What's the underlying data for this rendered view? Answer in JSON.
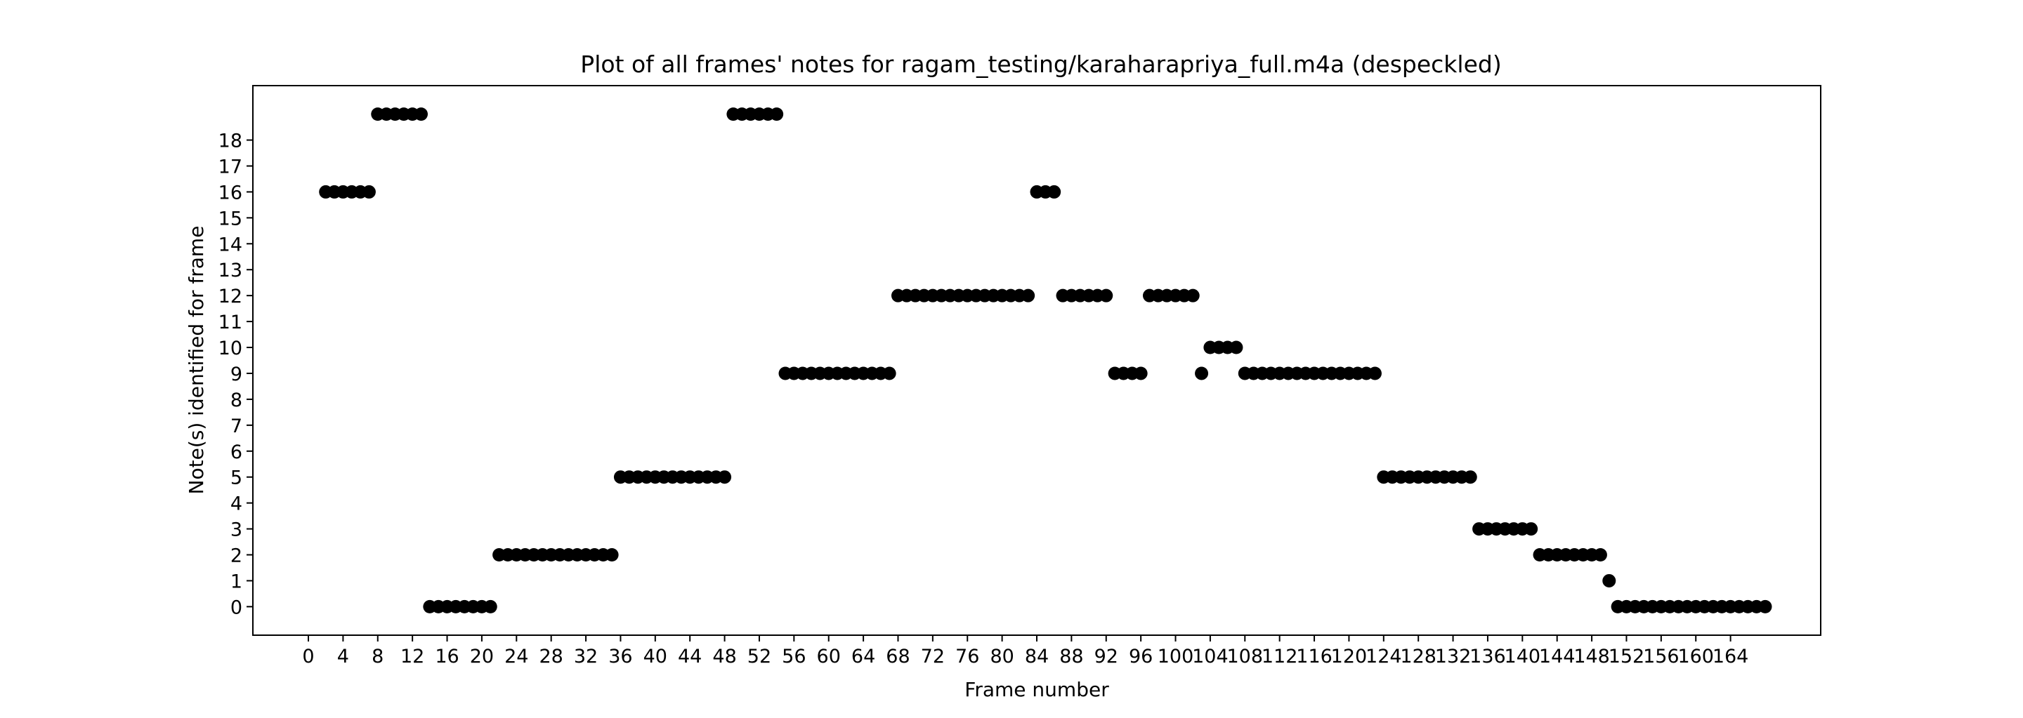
{
  "chart_data": {
    "type": "scatter",
    "title": "Plot of all frames' notes for ragam_testing/karaharapriya_full.m4a (despeckled)",
    "xlabel": "Frame number",
    "ylabel": "Note(s) identified for frame",
    "xlim": [
      -6.4,
      174.4
    ],
    "ylim": [
      -1.1,
      20.1
    ],
    "xticks": [
      0,
      4,
      8,
      12,
      16,
      20,
      24,
      28,
      32,
      36,
      40,
      44,
      48,
      52,
      56,
      60,
      64,
      68,
      72,
      76,
      80,
      84,
      88,
      92,
      96,
      100,
      104,
      108,
      112,
      116,
      120,
      124,
      128,
      132,
      136,
      140,
      144,
      148,
      152,
      156,
      160,
      164
    ],
    "yticks": [
      0,
      1,
      2,
      3,
      4,
      5,
      6,
      7,
      8,
      9,
      10,
      11,
      12,
      13,
      14,
      15,
      16,
      17,
      18
    ],
    "grid": false,
    "marker_color": "#000000",
    "points": [
      [
        2,
        16
      ],
      [
        3,
        16
      ],
      [
        4,
        16
      ],
      [
        5,
        16
      ],
      [
        6,
        16
      ],
      [
        7,
        16
      ],
      [
        8,
        19
      ],
      [
        9,
        19
      ],
      [
        10,
        19
      ],
      [
        11,
        19
      ],
      [
        12,
        19
      ],
      [
        13,
        19
      ],
      [
        14,
        0
      ],
      [
        15,
        0
      ],
      [
        16,
        0
      ],
      [
        17,
        0
      ],
      [
        18,
        0
      ],
      [
        19,
        0
      ],
      [
        20,
        0
      ],
      [
        21,
        0
      ],
      [
        22,
        2
      ],
      [
        23,
        2
      ],
      [
        24,
        2
      ],
      [
        25,
        2
      ],
      [
        26,
        2
      ],
      [
        27,
        2
      ],
      [
        28,
        2
      ],
      [
        29,
        2
      ],
      [
        30,
        2
      ],
      [
        31,
        2
      ],
      [
        32,
        2
      ],
      [
        33,
        2
      ],
      [
        34,
        2
      ],
      [
        35,
        2
      ],
      [
        36,
        5
      ],
      [
        37,
        5
      ],
      [
        38,
        5
      ],
      [
        39,
        5
      ],
      [
        40,
        5
      ],
      [
        41,
        5
      ],
      [
        42,
        5
      ],
      [
        43,
        5
      ],
      [
        44,
        5
      ],
      [
        45,
        5
      ],
      [
        46,
        5
      ],
      [
        47,
        5
      ],
      [
        48,
        5
      ],
      [
        49,
        19
      ],
      [
        50,
        19
      ],
      [
        51,
        19
      ],
      [
        52,
        19
      ],
      [
        53,
        19
      ],
      [
        54,
        19
      ],
      [
        55,
        9
      ],
      [
        56,
        9
      ],
      [
        57,
        9
      ],
      [
        58,
        9
      ],
      [
        59,
        9
      ],
      [
        60,
        9
      ],
      [
        61,
        9
      ],
      [
        62,
        9
      ],
      [
        63,
        9
      ],
      [
        64,
        9
      ],
      [
        65,
        9
      ],
      [
        66,
        9
      ],
      [
        67,
        9
      ],
      [
        68,
        12
      ],
      [
        69,
        12
      ],
      [
        70,
        12
      ],
      [
        71,
        12
      ],
      [
        72,
        12
      ],
      [
        73,
        12
      ],
      [
        74,
        12
      ],
      [
        75,
        12
      ],
      [
        76,
        12
      ],
      [
        77,
        12
      ],
      [
        78,
        12
      ],
      [
        79,
        12
      ],
      [
        80,
        12
      ],
      [
        81,
        12
      ],
      [
        82,
        12
      ],
      [
        83,
        12
      ],
      [
        84,
        16
      ],
      [
        85,
        16
      ],
      [
        86,
        16
      ],
      [
        87,
        12
      ],
      [
        88,
        12
      ],
      [
        89,
        12
      ],
      [
        90,
        12
      ],
      [
        91,
        12
      ],
      [
        92,
        12
      ],
      [
        93,
        9
      ],
      [
        94,
        9
      ],
      [
        95,
        9
      ],
      [
        96,
        9
      ],
      [
        97,
        12
      ],
      [
        98,
        12
      ],
      [
        99,
        12
      ],
      [
        100,
        12
      ],
      [
        101,
        12
      ],
      [
        102,
        12
      ],
      [
        103,
        9
      ],
      [
        104,
        10
      ],
      [
        105,
        10
      ],
      [
        106,
        10
      ],
      [
        107,
        10
      ],
      [
        108,
        9
      ],
      [
        109,
        9
      ],
      [
        110,
        9
      ],
      [
        111,
        9
      ],
      [
        112,
        9
      ],
      [
        113,
        9
      ],
      [
        114,
        9
      ],
      [
        115,
        9
      ],
      [
        116,
        9
      ],
      [
        117,
        9
      ],
      [
        118,
        9
      ],
      [
        119,
        9
      ],
      [
        120,
        9
      ],
      [
        121,
        9
      ],
      [
        122,
        9
      ],
      [
        123,
        9
      ],
      [
        124,
        5
      ],
      [
        125,
        5
      ],
      [
        126,
        5
      ],
      [
        127,
        5
      ],
      [
        128,
        5
      ],
      [
        129,
        5
      ],
      [
        130,
        5
      ],
      [
        131,
        5
      ],
      [
        132,
        5
      ],
      [
        133,
        5
      ],
      [
        134,
        5
      ],
      [
        135,
        3
      ],
      [
        136,
        3
      ],
      [
        137,
        3
      ],
      [
        138,
        3
      ],
      [
        139,
        3
      ],
      [
        140,
        3
      ],
      [
        141,
        3
      ],
      [
        142,
        2
      ],
      [
        143,
        2
      ],
      [
        144,
        2
      ],
      [
        145,
        2
      ],
      [
        146,
        2
      ],
      [
        147,
        2
      ],
      [
        148,
        2
      ],
      [
        149,
        2
      ],
      [
        150,
        1
      ],
      [
        151,
        0
      ],
      [
        152,
        0
      ],
      [
        153,
        0
      ],
      [
        154,
        0
      ],
      [
        155,
        0
      ],
      [
        156,
        0
      ],
      [
        157,
        0
      ],
      [
        158,
        0
      ],
      [
        159,
        0
      ],
      [
        160,
        0
      ],
      [
        161,
        0
      ],
      [
        162,
        0
      ],
      [
        163,
        0
      ],
      [
        164,
        0
      ],
      [
        165,
        0
      ],
      [
        166,
        0
      ],
      [
        167,
        0
      ],
      [
        168,
        0
      ]
    ]
  }
}
